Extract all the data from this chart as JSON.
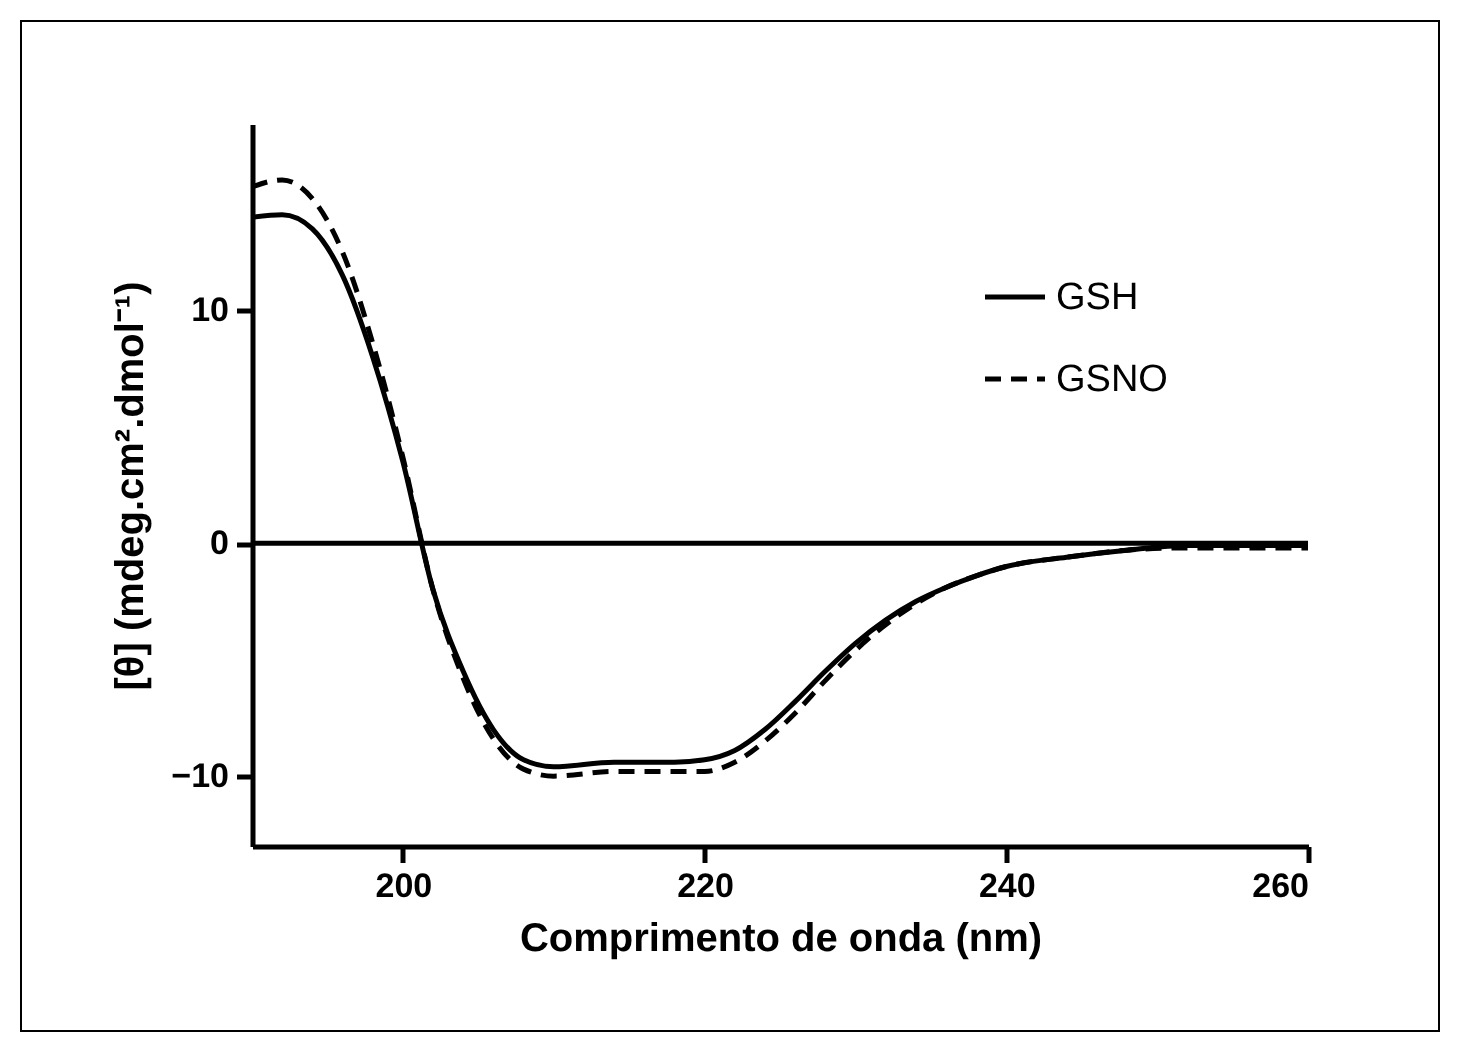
{
  "chart_data": {
    "type": "line",
    "xlabel": "Comprimento de onda (nm)",
    "ylabel": "[θ] (mdeg.cm².dmol⁻¹)",
    "xlim": [
      190,
      260
    ],
    "xticks": [
      200,
      220,
      240,
      260
    ],
    "ylim": [
      -13,
      18
    ],
    "yticks": [
      -10,
      0,
      10
    ],
    "grid": false,
    "legend": "top right",
    "marker": "none",
    "ref_lines": [
      {
        "axis": "y",
        "value": 0,
        "color": "#000000",
        "line_style": "solid"
      }
    ],
    "x": [
      190,
      192,
      194,
      196,
      198,
      200,
      202,
      204,
      206,
      208,
      210,
      214,
      218,
      220,
      222,
      224,
      226,
      228,
      230,
      232,
      234,
      236,
      238,
      240,
      244,
      248,
      252,
      256,
      260
    ],
    "series": [
      {
        "name": "GSH",
        "color": "#000000",
        "line_style": "solid",
        "values": [
          14.0,
          14.1,
          13.5,
          11.5,
          8.0,
          3.5,
          -2,
          -5.5,
          -8,
          -9.3,
          -9.6,
          -9.4,
          -9.4,
          -9.3,
          -8.9,
          -8,
          -6.8,
          -5.5,
          -4.3,
          -3.3,
          -2.5,
          -1.9,
          -1.4,
          -1.0,
          -0.6,
          -0.3,
          -0.1,
          -0.1,
          -0.1
        ]
      },
      {
        "name": "GSNO",
        "color": "#000000",
        "line_style": "dashed",
        "values": [
          15.3,
          15.6,
          14.8,
          12.5,
          8.6,
          3.7,
          -2,
          -5.8,
          -8.4,
          -9.7,
          -10,
          -9.8,
          -9.8,
          -9.8,
          -9.4,
          -8.5,
          -7.3,
          -5.9,
          -4.6,
          -3.5,
          -2.6,
          -1.9,
          -1.4,
          -1.0,
          -0.6,
          -0.3,
          -0.2,
          -0.2,
          -0.2
        ]
      }
    ]
  }
}
